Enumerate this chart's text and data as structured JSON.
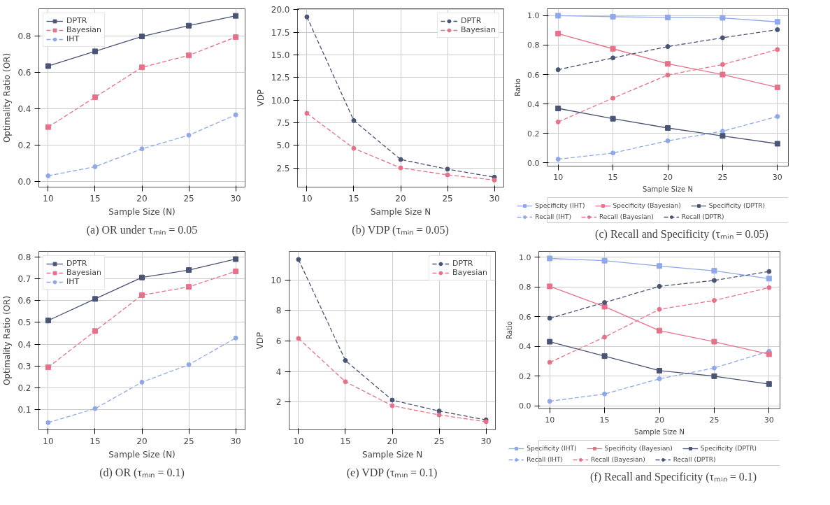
{
  "chart_data": [
    {
      "type": "line",
      "title": "(a) OR under τₘᵢₙ = 0.05",
      "xlabel": "Sample Size (N)",
      "ylabel": "Optimality Ratio (OR)",
      "x": [
        10,
        15,
        20,
        25,
        30
      ],
      "xlim": [
        9,
        31
      ],
      "xticks": [
        10,
        15,
        20,
        25,
        30
      ],
      "ylim": [
        -0.03,
        0.95
      ],
      "yticks": [
        {
          "value": 0,
          "label": "0.0"
        },
        0.2,
        0.4,
        0.6,
        0.8
      ],
      "grid": true,
      "legend": "top left",
      "series": [
        {
          "name": "DPTR",
          "color": "#4a5475",
          "marker": "square",
          "line_style": "solid",
          "values": [
            0.635,
            0.716,
            0.798,
            0.857,
            0.911
          ]
        },
        {
          "name": "Bayesian",
          "color": "#e8718a",
          "marker": "square",
          "line_style": "dashed",
          "values": [
            0.3,
            0.464,
            0.628,
            0.694,
            0.794
          ]
        },
        {
          "name": "IHT",
          "color": "#8fa8ea",
          "marker": "circle",
          "line_style": "dashed",
          "values": [
            0.032,
            0.082,
            0.18,
            0.255,
            0.367
          ]
        }
      ]
    },
    {
      "type": "line",
      "title": "(b) VDP (τₘᵢₙ = 0.05)",
      "xlabel": "Sample Size N",
      "ylabel": "VDP",
      "x": [
        10,
        15,
        20,
        25,
        30
      ],
      "xlim": [
        9,
        31
      ],
      "xticks": [
        10,
        15,
        20,
        25,
        30
      ],
      "ylim": [
        0.4,
        20.1
      ],
      "yticks": [
        2.5,
        {
          "value": 5,
          "label": "5.0"
        },
        7.5,
        {
          "value": 10,
          "label": "10.0"
        },
        12.5,
        {
          "value": 15,
          "label": "15.0"
        },
        17.5,
        {
          "value": 20,
          "label": "20.0"
        }
      ],
      "grid": true,
      "legend": "top right",
      "series": [
        {
          "name": "DPTR",
          "color": "#4a5475",
          "marker": "circle",
          "line_style": "dashed",
          "values": [
            19.2,
            7.75,
            3.45,
            2.38,
            1.5
          ]
        },
        {
          "name": "Bayesian",
          "color": "#e8718a",
          "marker": "circle",
          "line_style": "dashed",
          "values": [
            8.55,
            4.68,
            2.52,
            1.75,
            1.18
          ]
        }
      ]
    },
    {
      "type": "line",
      "title": "(c) Recall and Specificity (τₘᵢₙ = 0.05)",
      "xlabel": "Sample Size N",
      "ylabel": "Ratio",
      "x": [
        10,
        15,
        20,
        25,
        30
      ],
      "xlim": [
        9,
        31
      ],
      "xticks": [
        10,
        15,
        20,
        25,
        30
      ],
      "ylim": [
        -0.022,
        1.047
      ],
      "yticks": [
        {
          "value": 0,
          "label": "0.0"
        },
        0.2,
        0.4,
        0.6,
        0.8,
        {
          "value": 1,
          "label": "1.0"
        }
      ],
      "grid": true,
      "legend": "bottom",
      "series": [
        {
          "name": "Specificity (IHT)",
          "color": "#8fa8ea",
          "marker": "square",
          "line_style": "solid",
          "values": [
            1.0,
            0.993,
            0.988,
            0.985,
            0.958
          ]
        },
        {
          "name": "Recall (IHT)",
          "color": "#8fa8ea",
          "marker": "circle",
          "line_style": "dashed",
          "values": [
            0.025,
            0.067,
            0.15,
            0.215,
            0.315
          ]
        },
        {
          "name": "Specificity (Bayesian)",
          "color": "#e8718a",
          "marker": "square",
          "line_style": "solid",
          "values": [
            0.878,
            0.775,
            0.673,
            0.6,
            0.513
          ]
        },
        {
          "name": "Recall (Bayesian)",
          "color": "#e8718a",
          "marker": "circle",
          "line_style": "dashed",
          "values": [
            0.278,
            0.44,
            0.597,
            0.668,
            0.77
          ]
        },
        {
          "name": "Specificity (DPTR)",
          "color": "#4a5475",
          "marker": "square",
          "line_style": "solid",
          "values": [
            0.37,
            0.3,
            0.237,
            0.183,
            0.13
          ]
        },
        {
          "name": "Recall (DPTR)",
          "color": "#4a5475",
          "marker": "circle",
          "line_style": "dashed",
          "values": [
            0.633,
            0.713,
            0.79,
            0.85,
            0.905
          ]
        }
      ]
    },
    {
      "type": "line",
      "title": "(d) OR (τₘᵢₙ = 0.1)",
      "xlabel": "Sample Size (N)",
      "ylabel": "Optimality Ratio (OR)",
      "x": [
        10,
        15,
        20,
        25,
        30
      ],
      "xlim": [
        9,
        31
      ],
      "xticks": [
        10,
        15,
        20,
        25,
        30
      ],
      "ylim": [
        0.008,
        0.824
      ],
      "yticks": [
        0.1,
        0.2,
        0.3,
        0.4,
        0.5,
        0.6,
        0.7,
        0.8
      ],
      "grid": true,
      "legend": "top left",
      "series": [
        {
          "name": "DPTR",
          "color": "#4a5475",
          "marker": "square",
          "line_style": "solid",
          "values": [
            0.508,
            0.607,
            0.705,
            0.739,
            0.789
          ]
        },
        {
          "name": "Bayesian",
          "color": "#e8718a",
          "marker": "square",
          "line_style": "dashed",
          "values": [
            0.294,
            0.46,
            0.624,
            0.662,
            0.733
          ]
        },
        {
          "name": "IHT",
          "color": "#8fa8ea",
          "marker": "circle",
          "line_style": "dashed",
          "values": [
            0.041,
            0.105,
            0.226,
            0.306,
            0.428
          ]
        }
      ]
    },
    {
      "type": "line",
      "title": "(e) VDP (τₘᵢₙ = 0.1)",
      "xlabel": "Sample Size N",
      "ylabel": "VDP",
      "x": [
        10,
        15,
        20,
        25,
        30
      ],
      "xlim": [
        9,
        31
      ],
      "xticks": [
        10,
        15,
        20,
        25,
        30
      ],
      "ylim": [
        0.17,
        11.88
      ],
      "yticks": [
        2,
        4,
        6,
        8,
        10
      ],
      "grid": true,
      "legend": "top right",
      "series": [
        {
          "name": "DPTR",
          "color": "#4a5475",
          "marker": "circle",
          "line_style": "dashed",
          "values": [
            11.35,
            4.72,
            2.12,
            1.4,
            0.82
          ]
        },
        {
          "name": "Bayesian",
          "color": "#e8718a",
          "marker": "circle",
          "line_style": "dashed",
          "values": [
            6.17,
            3.33,
            1.75,
            1.15,
            0.7
          ]
        }
      ]
    },
    {
      "type": "line",
      "title": "(f) Recall and Specificity (τₘᵢₙ = 0.1)",
      "xlabel": "Sample Size N",
      "ylabel": "Ratio",
      "x": [
        10,
        15,
        20,
        25,
        30
      ],
      "xlim": [
        9,
        31
      ],
      "xticks": [
        10,
        15,
        20,
        25,
        30
      ],
      "ylim": [
        -0.02,
        1.04
      ],
      "yticks": [
        {
          "value": 0,
          "label": "0.0"
        },
        0.2,
        0.4,
        0.6,
        0.8,
        {
          "value": 1,
          "label": "1.0"
        }
      ],
      "grid": true,
      "legend": "bottom",
      "series": [
        {
          "name": "Specificity (IHT)",
          "color": "#8fa8ea",
          "marker": "square",
          "line_style": "solid",
          "values": [
            0.993,
            0.978,
            0.942,
            0.91,
            0.857
          ]
        },
        {
          "name": "Recall (IHT)",
          "color": "#8fa8ea",
          "marker": "circle",
          "line_style": "dashed",
          "values": [
            0.031,
            0.08,
            0.182,
            0.255,
            0.368
          ]
        },
        {
          "name": "Specificity (Bayesian)",
          "color": "#e8718a",
          "marker": "square",
          "line_style": "solid",
          "values": [
            0.805,
            0.668,
            0.507,
            0.432,
            0.348
          ]
        },
        {
          "name": "Recall (Bayesian)",
          "color": "#e8718a",
          "marker": "circle",
          "line_style": "dashed",
          "values": [
            0.293,
            0.463,
            0.65,
            0.71,
            0.796
          ]
        },
        {
          "name": "Specificity (DPTR)",
          "color": "#4a5475",
          "marker": "square",
          "line_style": "solid",
          "values": [
            0.432,
            0.335,
            0.237,
            0.2,
            0.147
          ]
        },
        {
          "name": "Recall (DPTR)",
          "color": "#4a5475",
          "marker": "circle",
          "line_style": "dashed",
          "values": [
            0.59,
            0.696,
            0.805,
            0.845,
            0.905
          ]
        }
      ]
    }
  ]
}
